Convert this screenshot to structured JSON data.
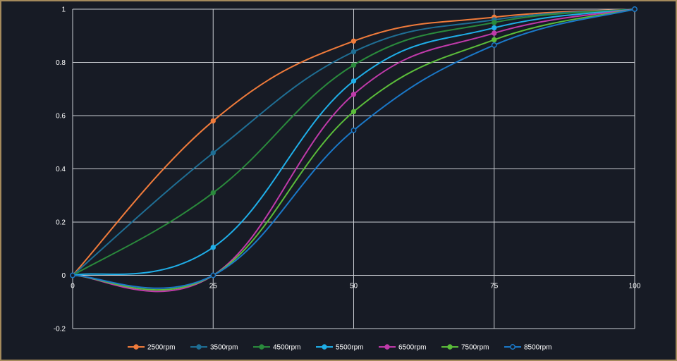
{
  "chart_data": {
    "type": "line",
    "title": "",
    "xlabel": "",
    "ylabel": "",
    "x": [
      0,
      25,
      50,
      75,
      100
    ],
    "xlim": [
      0,
      100
    ],
    "ylim": [
      -0.2,
      1
    ],
    "x_ticks": [
      0,
      25,
      50,
      75,
      100
    ],
    "x_tick_labels": [
      "0",
      "25",
      "50",
      "75",
      "100"
    ],
    "y_ticks": [
      -0.2,
      0,
      0.2,
      0.4,
      0.6,
      0.8,
      1
    ],
    "y_tick_labels": [
      "-0.2",
      "0",
      "0.2",
      "0.4",
      "0.6",
      "0.8",
      "1"
    ],
    "grid": true,
    "legend_position": "bottom",
    "smooth": true,
    "series": [
      {
        "name": "2500rpm",
        "color": "#f07b3b",
        "values": [
          0,
          0.58,
          0.88,
          0.97,
          1
        ]
      },
      {
        "name": "3500rpm",
        "color": "#1f6e94",
        "values": [
          0,
          0.46,
          0.84,
          0.96,
          1
        ]
      },
      {
        "name": "4500rpm",
        "color": "#2a8a3c",
        "values": [
          0,
          0.31,
          0.79,
          0.95,
          1
        ]
      },
      {
        "name": "5500rpm",
        "color": "#1faee8",
        "values": [
          0,
          0.105,
          0.73,
          0.93,
          1
        ]
      },
      {
        "name": "6500rpm",
        "color": "#c03aaa",
        "values": [
          0,
          0,
          0.68,
          0.91,
          1
        ]
      },
      {
        "name": "7500rpm",
        "color": "#5bbd3a",
        "values": [
          0,
          0,
          0.615,
          0.885,
          1
        ]
      },
      {
        "name": "8500rpm",
        "color": "#1a78c8",
        "values": [
          0,
          0,
          0.545,
          0.865,
          1
        ]
      }
    ]
  }
}
